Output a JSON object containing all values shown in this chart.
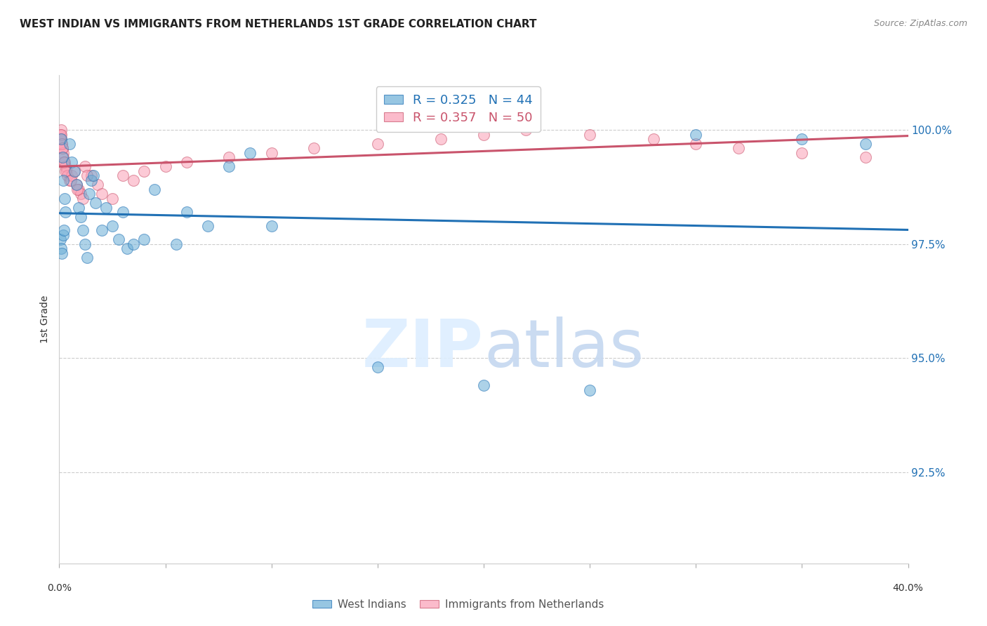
{
  "title": "WEST INDIAN VS IMMIGRANTS FROM NETHERLANDS 1ST GRADE CORRELATION CHART",
  "source": "Source: ZipAtlas.com",
  "ylabel": "1st Grade",
  "y_ticks": [
    92.5,
    95.0,
    97.5,
    100.0
  ],
  "y_tick_labels": [
    "92.5%",
    "95.0%",
    "97.5%",
    "100.0%"
  ],
  "xlim": [
    0.0,
    40.0
  ],
  "ylim": [
    90.5,
    101.2
  ],
  "blue_color": "#6baed6",
  "pink_color": "#fa9fb5",
  "blue_line_color": "#2171b5",
  "pink_line_color": "#c9546c",
  "R_blue": 0.325,
  "N_blue": 44,
  "R_pink": 0.357,
  "N_pink": 50,
  "legend_label_blue": "West Indians",
  "legend_label_pink": "Immigrants from Netherlands",
  "blue_x": [
    0.1,
    0.15,
    0.2,
    0.25,
    0.3,
    0.5,
    0.6,
    0.7,
    0.8,
    0.9,
    1.0,
    1.1,
    1.2,
    1.3,
    1.4,
    1.5,
    1.6,
    1.7,
    2.0,
    2.2,
    2.5,
    2.8,
    3.0,
    3.2,
    3.5,
    4.0,
    4.5,
    5.5,
    6.0,
    7.0,
    8.0,
    9.0,
    10.0,
    15.0,
    20.0,
    25.0,
    30.0,
    35.0,
    38.0,
    0.05,
    0.08,
    0.12,
    0.18,
    0.22
  ],
  "blue_y": [
    99.8,
    99.4,
    98.9,
    98.5,
    98.2,
    99.7,
    99.3,
    99.1,
    98.8,
    98.3,
    98.1,
    97.8,
    97.5,
    97.2,
    98.6,
    98.9,
    99.0,
    98.4,
    97.8,
    98.3,
    97.9,
    97.6,
    98.2,
    97.4,
    97.5,
    97.6,
    98.7,
    97.5,
    98.2,
    97.9,
    99.2,
    99.5,
    97.9,
    94.8,
    94.4,
    94.3,
    99.9,
    99.8,
    99.7,
    97.6,
    97.4,
    97.3,
    97.7,
    97.8
  ],
  "pink_x": [
    0.05,
    0.08,
    0.1,
    0.12,
    0.15,
    0.18,
    0.2,
    0.25,
    0.3,
    0.35,
    0.4,
    0.5,
    0.6,
    0.7,
    0.8,
    0.9,
    1.0,
    1.1,
    1.2,
    1.5,
    1.8,
    2.0,
    2.5,
    3.0,
    3.5,
    4.0,
    5.0,
    6.0,
    8.0,
    10.0,
    12.0,
    15.0,
    18.0,
    20.0,
    22.0,
    25.0,
    28.0,
    30.0,
    32.0,
    35.0,
    38.0,
    0.06,
    0.09,
    0.11,
    0.14,
    0.22,
    0.28,
    0.55,
    0.85,
    1.3
  ],
  "pink_y": [
    99.9,
    100.0,
    99.8,
    99.7,
    99.6,
    99.5,
    99.4,
    99.3,
    99.2,
    99.1,
    99.0,
    98.9,
    99.0,
    99.1,
    98.8,
    98.7,
    98.6,
    98.5,
    99.2,
    99.0,
    98.8,
    98.6,
    98.5,
    99.0,
    98.9,
    99.1,
    99.2,
    99.3,
    99.4,
    99.5,
    99.6,
    99.7,
    99.8,
    99.9,
    100.0,
    99.9,
    99.8,
    99.7,
    99.6,
    99.5,
    99.4,
    99.8,
    99.9,
    99.7,
    99.6,
    99.3,
    99.1,
    98.9,
    98.7,
    99.0
  ]
}
